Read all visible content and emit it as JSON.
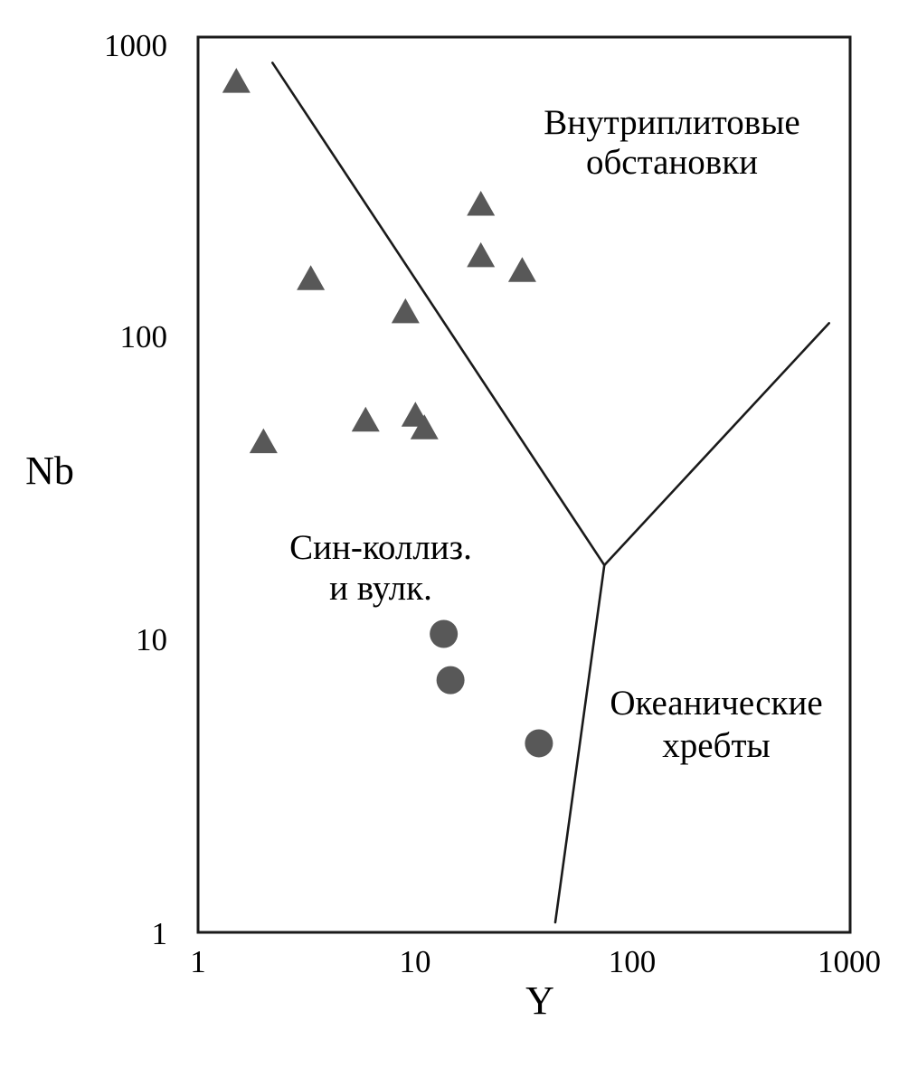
{
  "figure": {
    "x_axis": {
      "title": "Y",
      "scale": "log",
      "range": [
        1,
        1000
      ],
      "tick_labels": [
        "1",
        "10",
        "100",
        "1000"
      ]
    },
    "y_axis": {
      "title": "Nb",
      "scale": "log",
      "range": [
        1,
        1000
      ],
      "tick_labels": [
        "1000",
        "100",
        "10",
        "1"
      ]
    },
    "regions": {
      "within_plate": {
        "line1": "Внутриплитовые",
        "line2": "обстановки"
      },
      "syn_collisional": {
        "line1": "Син-коллиз.",
        "line2": "и вулк."
      },
      "oceanic_ridges": {
        "line1": "Океанические",
        "line2": "хребты"
      }
    },
    "colors": {
      "marker_fill": "#585858",
      "line": "#1a1a1a",
      "background": "#ffffff"
    }
  },
  "chart_data": {
    "type": "scatter",
    "title": "",
    "xlabel": "Y",
    "ylabel": "Nb",
    "xscale": "log",
    "yscale": "log",
    "xlim": [
      1,
      1000
    ],
    "ylim": [
      1,
      1000
    ],
    "grid": false,
    "legend": false,
    "series": [
      {
        "name": "triangles",
        "marker": "triangle",
        "color": "#585858",
        "points": [
          [
            1.5,
            710
          ],
          [
            3.3,
            155
          ],
          [
            9,
            120
          ],
          [
            20,
            275
          ],
          [
            20,
            185
          ],
          [
            31,
            165
          ],
          [
            2,
            44
          ],
          [
            5.9,
            52
          ],
          [
            10,
            54
          ],
          [
            11,
            49
          ]
        ]
      },
      {
        "name": "circles",
        "marker": "circle",
        "color": "#585858",
        "points": [
          [
            13.5,
            10
          ],
          [
            14.5,
            7
          ],
          [
            37,
            4.3
          ]
        ]
      }
    ],
    "boundary_lines": [
      {
        "name": "syn-collisional / within-plate",
        "points": [
          [
            2.2,
            820
          ],
          [
            74,
            17
          ]
        ]
      },
      {
        "name": "within-plate / oceanic-ridges",
        "points": [
          [
            74,
            17
          ],
          [
            800,
            110
          ]
        ]
      },
      {
        "name": "syn-collisional / oceanic-ridges",
        "points": [
          [
            74,
            17
          ],
          [
            44,
            1.08
          ]
        ]
      }
    ],
    "annotations": [
      {
        "text": "Внутриплитовые обстановки",
        "region": "upper right"
      },
      {
        "text": "Син-коллиз. и вулк.",
        "region": "lower left"
      },
      {
        "text": "Океанические хребты",
        "region": "lower right"
      }
    ]
  }
}
